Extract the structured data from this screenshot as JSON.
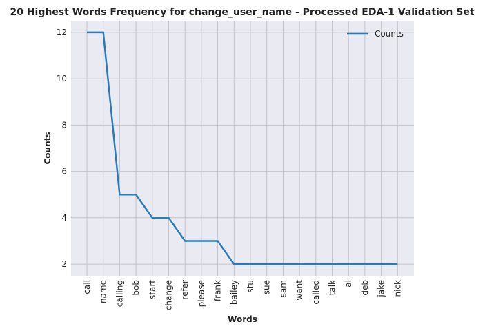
{
  "chart_data": {
    "type": "line",
    "title": "20 Highest Words Frequency for change_user_name - Processed EDA-1 Validation Set",
    "xlabel": "Words",
    "ylabel": "Counts",
    "categories": [
      "call",
      "name",
      "calling",
      "bob",
      "start",
      "change",
      "refer",
      "please",
      "frank",
      "bailey",
      "stu",
      "sue",
      "sam",
      "want",
      "called",
      "talk",
      "ai",
      "deb",
      "jake",
      "nick"
    ],
    "series": [
      {
        "name": "Counts",
        "values": [
          12,
          12,
          5,
          5,
          4,
          4,
          3,
          3,
          3,
          2,
          2,
          2,
          2,
          2,
          2,
          2,
          2,
          2,
          2,
          2
        ]
      }
    ],
    "yticks": [
      2,
      4,
      6,
      8,
      10,
      12
    ],
    "ylim": [
      1.5,
      12.5
    ],
    "grid": true,
    "legend_position": "top-right",
    "colors": {
      "line": "#2b7bba",
      "plot_background": "#eaeaf2",
      "grid": "#c4c4c9"
    }
  }
}
